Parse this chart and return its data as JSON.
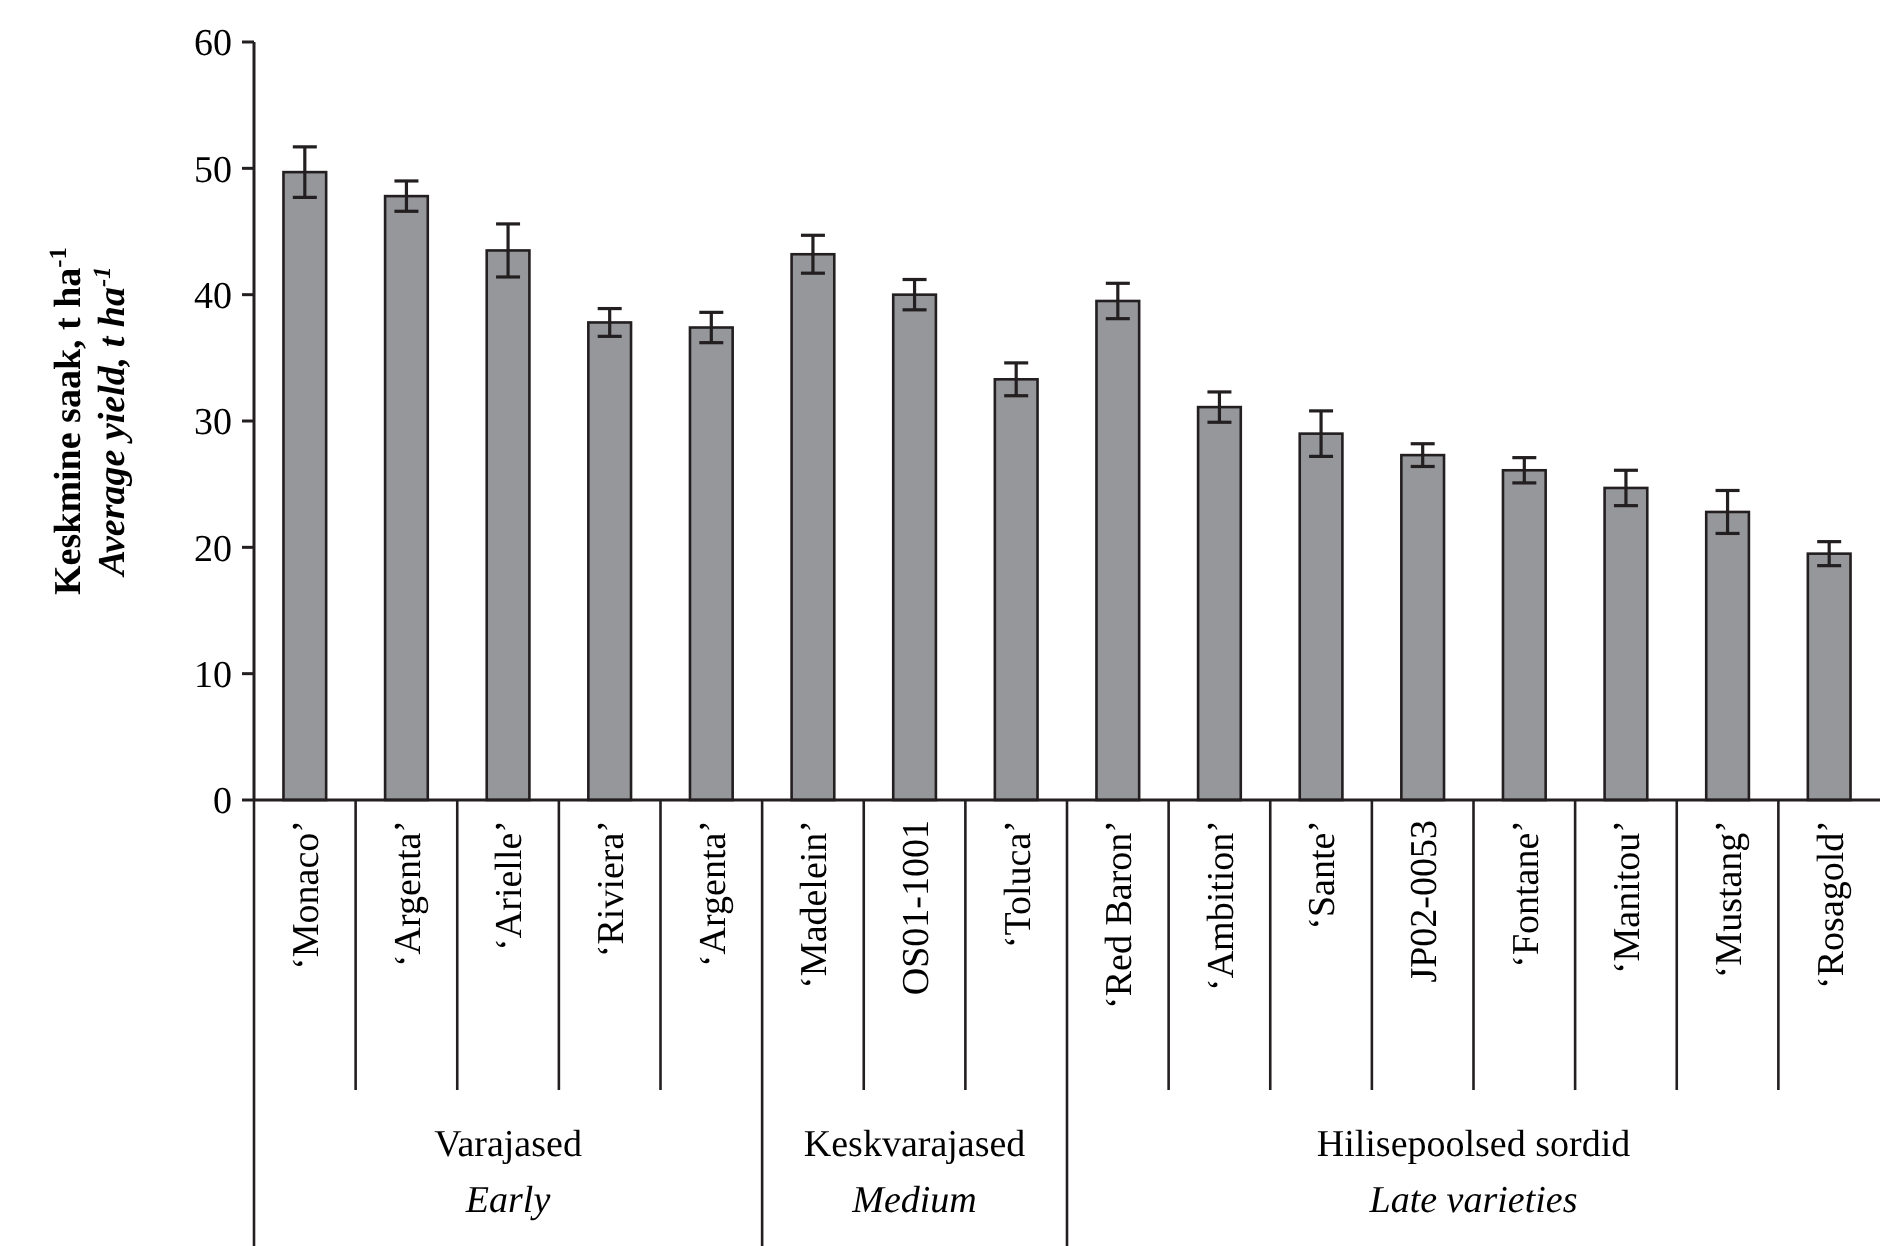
{
  "chart_data": {
    "type": "bar",
    "ylabel": "Keskmine saak, t ha$^{-1}$\nAverage yield, t ha$^{-1}$",
    "categories": [
      "‘Monaco’",
      "‘Argenta’",
      "‘Arielle’",
      "‘Riviera’",
      "‘Argenta’",
      "‘Madelein’",
      "OS01-1001",
      "‘Toluca’",
      "‘Red Baron’",
      "‘Ambition’",
      "‘Sante’",
      "JP02-0053",
      "‘Fontane’",
      "‘Manitou’",
      "‘Mustang’",
      "‘Rosagold’"
    ],
    "values": [
      49.7,
      47.8,
      43.5,
      37.8,
      37.4,
      43.2,
      40.0,
      33.3,
      39.5,
      31.1,
      29.0,
      27.3,
      26.1,
      24.7,
      22.8,
      19.5
    ],
    "errors": [
      2.0,
      1.2,
      2.1,
      1.1,
      1.2,
      1.5,
      1.2,
      1.3,
      1.4,
      1.2,
      1.8,
      0.9,
      1.0,
      1.4,
      1.7,
      0.95
    ],
    "color": "#96979b",
    "ylim": [
      0,
      60
    ],
    "yticks": [
      0,
      10,
      20,
      30,
      40,
      50,
      60
    ],
    "annotations": [
      "Varajased",
      "Early",
      "Keskvarajased",
      "Medium",
      "Hilisepoolsed sordid",
      "Late varieties"
    ]
  }
}
